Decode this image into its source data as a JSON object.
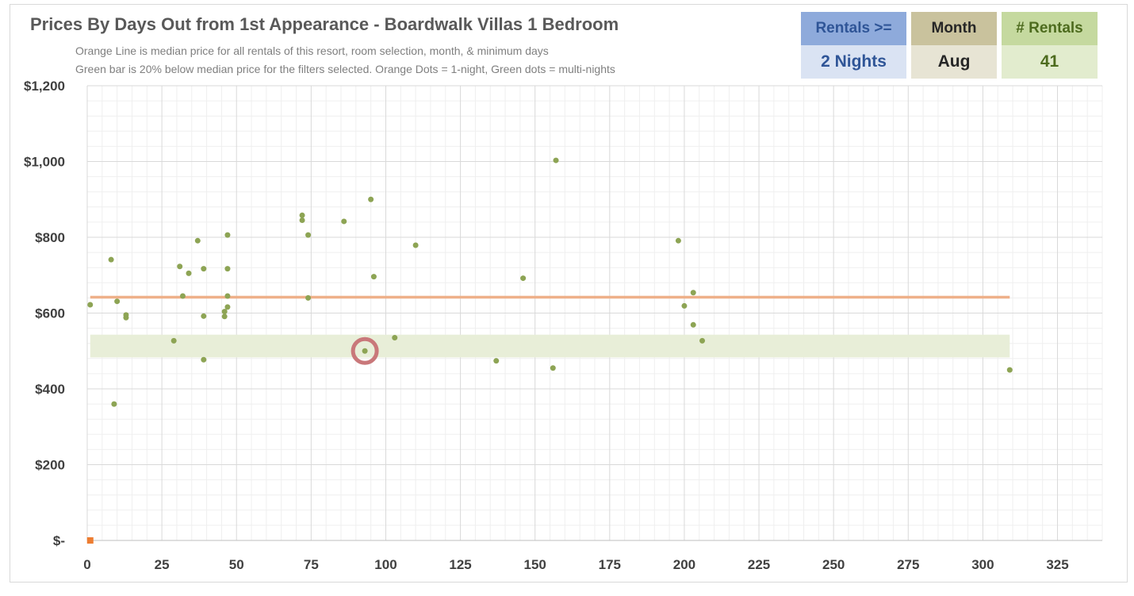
{
  "header": {
    "title": "Prices By Days Out from 1st Appearance - Boardwalk Villas 1 Bedroom",
    "subtitle_line1": "Orange Line is median price for all rentals of this resort, room selection, month, & minimum days",
    "subtitle_line2": "Green bar is 20% below median price for the filters selected. Orange Dots = 1-night, Green dots = multi-nights"
  },
  "filters": {
    "rentals_label": "Rentals >=",
    "rentals_value": "2 Nights",
    "month_label": "Month",
    "month_value": "Aug",
    "count_label": "# Rentals",
    "count_value": "41"
  },
  "colors": {
    "green_dot": "#8da454",
    "orange_dot": "#ed7d31",
    "median_line": "#eeb089",
    "green_band": "#e8eed8",
    "highlight_ring": "#c9787a",
    "grid_major": "#d9d9d9",
    "grid_minor": "#efefef"
  },
  "chart_data": {
    "type": "scatter",
    "xlim": [
      0,
      340
    ],
    "ylim": [
      0,
      1200
    ],
    "x_ticks": [
      0,
      25,
      50,
      75,
      100,
      125,
      150,
      175,
      200,
      225,
      250,
      275,
      300,
      325
    ],
    "y_ticks": [
      0,
      200,
      400,
      600,
      800,
      1000,
      1200
    ],
    "y_tick_labels": [
      "$-",
      "$200",
      "$400",
      "$600",
      "$800",
      "$1,000",
      "$1,200"
    ],
    "grid": true,
    "median_line": {
      "y": 642,
      "x_range": [
        1,
        309
      ]
    },
    "green_band": {
      "y_range": [
        483,
        543
      ],
      "x_range": [
        1,
        309
      ]
    },
    "highlight_point": {
      "x": 93,
      "y": 500
    },
    "series": [
      {
        "values": [
          [
            1,
            622
          ],
          [
            8,
            741
          ],
          [
            9,
            360
          ],
          [
            10,
            631
          ],
          [
            13,
            595
          ],
          [
            13,
            588
          ],
          [
            29,
            527
          ],
          [
            31,
            723
          ],
          [
            32,
            645
          ],
          [
            34,
            705
          ],
          [
            37,
            791
          ],
          [
            39,
            717
          ],
          [
            39,
            592
          ],
          [
            39,
            477
          ],
          [
            46,
            604
          ],
          [
            46,
            591
          ],
          [
            47,
            806
          ],
          [
            47,
            717
          ],
          [
            47,
            645
          ],
          [
            47,
            616
          ],
          [
            72,
            858
          ],
          [
            72,
            845
          ],
          [
            74,
            806
          ],
          [
            74,
            640
          ],
          [
            86,
            842
          ],
          [
            93,
            500
          ],
          [
            95,
            900
          ],
          [
            96,
            696
          ],
          [
            103,
            535
          ],
          [
            110,
            779
          ],
          [
            137,
            474
          ],
          [
            146,
            692
          ],
          [
            156,
            455
          ],
          [
            157,
            1003
          ],
          [
            198,
            791
          ],
          [
            200,
            619
          ],
          [
            203,
            654
          ],
          [
            203,
            569
          ],
          [
            206,
            527
          ],
          [
            309,
            450
          ]
        ]
      },
      {
        "values": [
          [
            1,
            0
          ]
        ]
      }
    ]
  }
}
